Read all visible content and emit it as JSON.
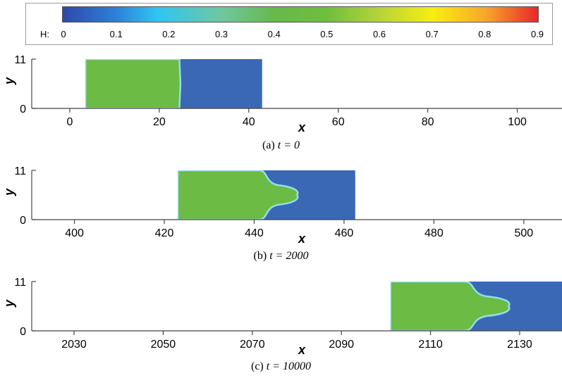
{
  "colorbar": {
    "label": "H:",
    "ticks": [
      "0",
      "0.1",
      "0.2",
      "0.3",
      "0.4",
      "0.5",
      "0.6",
      "0.7",
      "0.8",
      "0.9"
    ],
    "stops": [
      {
        "value": 0.0,
        "color": "#2e4aa8"
      },
      {
        "value": 0.1,
        "color": "#2d7fd8"
      },
      {
        "value": 0.18,
        "color": "#2fc6f2"
      },
      {
        "value": 0.3,
        "color": "#6fc7a0"
      },
      {
        "value": 0.4,
        "color": "#66b94a"
      },
      {
        "value": 0.5,
        "color": "#70be3e"
      },
      {
        "value": 0.6,
        "color": "#b6d33a"
      },
      {
        "value": 0.7,
        "color": "#f8ee10"
      },
      {
        "value": 0.8,
        "color": "#f7a82a"
      },
      {
        "value": 0.9,
        "color": "#e8262b"
      }
    ]
  },
  "chart_data": [
    {
      "type": "heatmap",
      "caption_prefix": "(a) ",
      "caption_math": "t = 0",
      "xlabel": "x",
      "ylabel": "y",
      "xlim": [
        -8.5,
        110
      ],
      "ylim": [
        0,
        11
      ],
      "xticks": [
        0,
        20,
        40,
        60,
        80,
        100
      ],
      "yticks": [
        0,
        11
      ],
      "domain": [
        3.5,
        43
      ],
      "interface": {
        "base": 24.5,
        "tip": 24.5
      },
      "colors": {
        "left": "#6bbb45",
        "right": "#3a68b5",
        "edge": "#8fdff0"
      }
    },
    {
      "type": "heatmap",
      "caption_prefix": "(b) ",
      "caption_math": "t = 2000",
      "xlabel": "x",
      "ylabel": "y",
      "xlim": [
        390.5,
        508.5
      ],
      "ylim": [
        0,
        11
      ],
      "xticks": [
        400,
        420,
        440,
        460,
        480,
        500
      ],
      "yticks": [
        0,
        11
      ],
      "domain": [
        423,
        462.5
      ],
      "interface": {
        "base": 441,
        "tip": 449.5
      },
      "colors": {
        "left": "#6bbb45",
        "right": "#3a68b5",
        "edge": "#8fdff0"
      }
    },
    {
      "type": "heatmap",
      "caption_prefix": "(c) ",
      "caption_math": "t = 10000",
      "xlabel": "x",
      "ylabel": "y",
      "xlim": [
        2020.5,
        2139.5
      ],
      "ylim": [
        0,
        11
      ],
      "xticks": [
        2030,
        2050,
        2070,
        2090,
        2110,
        2130
      ],
      "yticks": [
        0,
        11
      ],
      "domain": [
        2101,
        2140
      ],
      "interface": {
        "base": 2117.5,
        "tip": 2127.5
      },
      "colors": {
        "left": "#6bbb45",
        "right": "#3a68b5",
        "edge": "#8fdff0"
      }
    }
  ]
}
